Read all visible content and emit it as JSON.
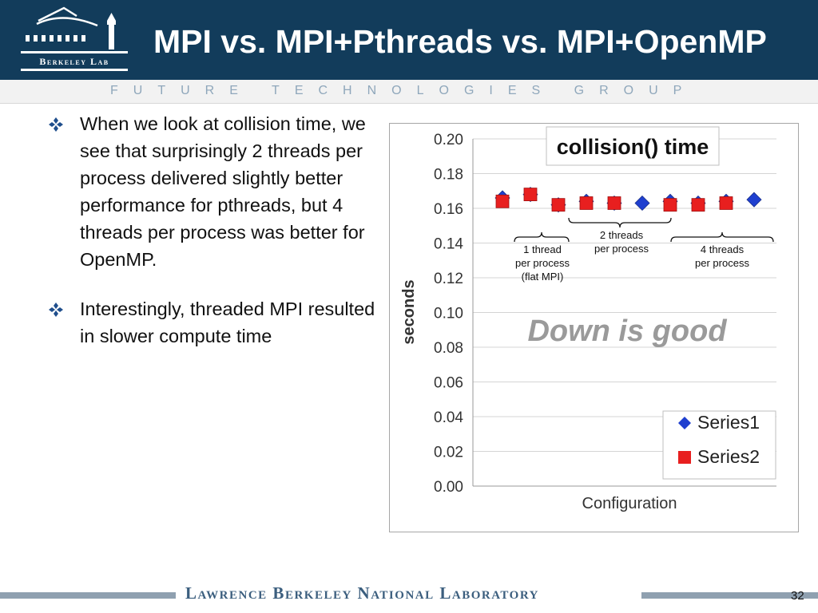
{
  "header": {
    "title": "MPI vs. MPI+Pthreads vs. MPI+OpenMP",
    "logo_text": "Berkeley Lab",
    "band_text": "FUTURE   TECHNOLOGIES   GROUP"
  },
  "bullets": [
    {
      "text": "When we look at collision time, we see that surprisingly 2 threads per process delivered slightly better performance for pthreads, but 4 threads per process was better for OpenMP."
    },
    {
      "text": "Interestingly, threaded MPI resulted in slower compute time"
    }
  ],
  "chart_data": {
    "type": "scatter",
    "title": "collision() time",
    "xlabel": "Configuration",
    "ylabel": "seconds",
    "ylim": [
      0,
      0.2
    ],
    "yticks": [
      "0.00",
      "0.02",
      "0.04",
      "0.06",
      "0.08",
      "0.10",
      "0.12",
      "0.14",
      "0.16",
      "0.18",
      "0.20"
    ],
    "grid": true,
    "legend_position": "bottom-right",
    "x": [
      1,
      2,
      3,
      4,
      5,
      6,
      7,
      8,
      9,
      10
    ],
    "series": [
      {
        "name": "Series1",
        "marker": "diamond",
        "color": "#1f3fcf",
        "values": [
          0.166,
          0.168,
          0.162,
          0.164,
          0.163,
          0.163,
          0.164,
          0.163,
          0.164,
          0.165
        ]
      },
      {
        "name": "Series2",
        "marker": "square",
        "color": "#e81f1f",
        "values": [
          0.164,
          0.168,
          0.162,
          0.163,
          0.163,
          null,
          0.162,
          0.162,
          0.163,
          null
        ]
      }
    ],
    "annotations": [
      {
        "lines": [
          "1 thread",
          "per process",
          "(flat MPI)"
        ]
      },
      {
        "lines": [
          "2 threads",
          "per process"
        ]
      },
      {
        "lines": [
          "4 threads",
          "per process"
        ]
      }
    ],
    "callout": "Down is good"
  },
  "footer": {
    "lab_name": "Lawrence Berkeley National Laboratory",
    "page_number": "32"
  },
  "colors": {
    "header_bg": "#123c5b",
    "band_text": "#8fa7bb",
    "bullet_icon": "#1f4e8c",
    "footer_text": "#3b5e7e"
  }
}
